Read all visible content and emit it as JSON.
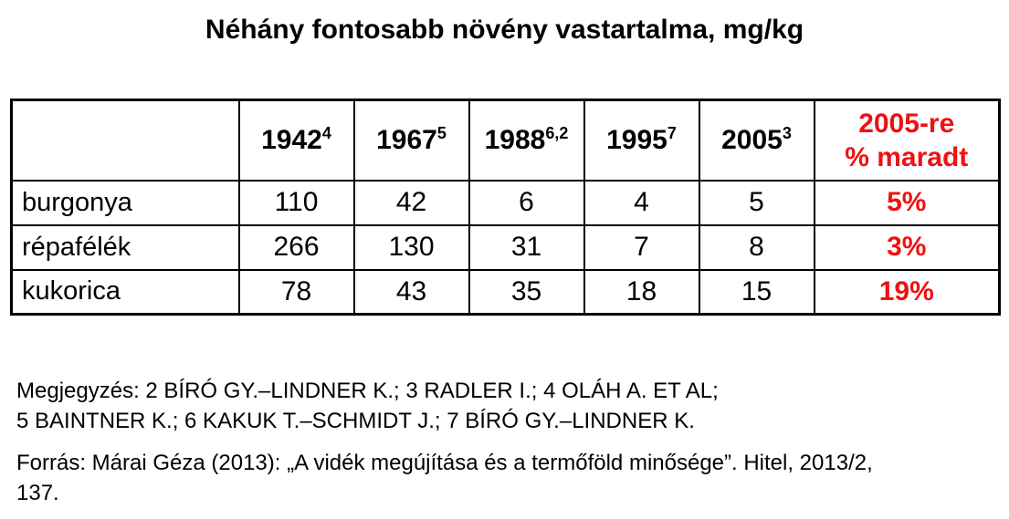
{
  "title": "Néhány fontosabb növény vastartalma, mg/kg",
  "colors": {
    "accent_red": "#ee1111",
    "ink": "#000000",
    "paper": "#ffffff"
  },
  "table": {
    "header": {
      "corner": "",
      "years": [
        {
          "text": "1942",
          "sup": "4"
        },
        {
          "text": "1967",
          "sup": "5"
        },
        {
          "text": "1988",
          "sup": "6,2"
        },
        {
          "text": "1995",
          "sup": "7"
        },
        {
          "text": "2005",
          "sup": "3"
        }
      ],
      "remain": {
        "line1": "2005-re",
        "line2": "% maradt"
      }
    },
    "rows": [
      {
        "label": "burgonya",
        "values": [
          "110",
          "42",
          "6",
          "4",
          "5"
        ],
        "percent": "5%"
      },
      {
        "label": "répafélék",
        "values": [
          "266",
          "130",
          "31",
          "7",
          "8"
        ],
        "percent": "3%"
      },
      {
        "label": "kukorica",
        "values": [
          "78",
          "43",
          "35",
          "18",
          "15"
        ],
        "percent": "19%"
      }
    ]
  },
  "notes": {
    "line1": "Megjegyzés: 2 BÍRÓ GY.–LINDNER K.; 3 RADLER I.; 4 OLÁH A. ET AL;",
    "line2": "5 BAINTNER K.; 6 KAKUK T.–SCHMIDT J.; 7 BÍRÓ GY.–LINDNER K."
  },
  "source": {
    "line1": "Forrás: Márai Géza (2013): „A vidék megújítása és a termőföld minősége”. Hitel, 2013/2,",
    "line2": "137."
  },
  "chart_data": {
    "type": "table",
    "title": "Néhány fontosabb növény vastartalma, mg/kg",
    "columns": [
      "",
      "1942",
      "1967",
      "1988",
      "1995",
      "2005",
      "2005-re % maradt"
    ],
    "rows": [
      [
        "burgonya",
        110,
        42,
        6,
        4,
        5,
        "5%"
      ],
      [
        "répafélék",
        266,
        130,
        31,
        7,
        8,
        "3%"
      ],
      [
        "kukorica",
        78,
        43,
        35,
        18,
        15,
        "19%"
      ]
    ],
    "unit": "mg/kg",
    "highlight_column_color": "#ee1111"
  }
}
